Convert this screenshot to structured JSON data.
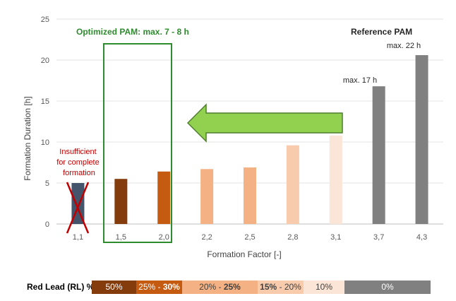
{
  "chart_data": {
    "type": "bar",
    "categories": [
      "1,1",
      "1,5",
      "2,0",
      "2,2",
      "2,5",
      "2,8",
      "3,1",
      "3,7",
      "4,3"
    ],
    "values": [
      5.0,
      5.5,
      6.4,
      6.7,
      6.9,
      9.6,
      10.8,
      16.8,
      20.6
    ],
    "colors": [
      "#44546a",
      "#843c0c",
      "#c55a11",
      "#f4b183",
      "#f4b183",
      "#f8cbad",
      "#fbe5d6",
      "#808080",
      "#808080"
    ],
    "xlabel": "Formation Factor [-]",
    "ylabel": "Formation Duration [h]",
    "ylim": [
      0,
      25
    ],
    "yticks": [
      0,
      5,
      10,
      15,
      20,
      25
    ],
    "grid": true,
    "annotations": {
      "optimized": "Optimized PAM: max. 7 - 8 h",
      "reference": "Reference PAM",
      "max17": "max. 17 h",
      "max22": "max. 22 h",
      "insufficient": [
        "Insufficient",
        "for complete",
        "formation"
      ]
    }
  },
  "legend": {
    "label": "Red Lead (RL) %",
    "segments": [
      {
        "parts": [
          {
            "text": "50%",
            "bold": false
          }
        ],
        "color": "#843c0c",
        "text_color": "#ffffff"
      },
      {
        "parts": [
          {
            "text": "25% - ",
            "bold": false
          },
          {
            "text": "30%",
            "bold": true
          }
        ],
        "color": "#c55a11",
        "text_color": "#ffffff"
      },
      {
        "parts": [
          {
            "text": "20% - ",
            "bold": false
          },
          {
            "text": "25%",
            "bold": true
          }
        ],
        "color": "#f4b183",
        "text_color": "#404040"
      },
      {
        "parts": [
          {
            "text": "15%",
            "bold": true
          },
          {
            "text": " - 20%",
            "bold": false
          }
        ],
        "color": "#f8cbad",
        "text_color": "#404040"
      },
      {
        "parts": [
          {
            "text": "10%",
            "bold": false
          }
        ],
        "color": "#fbe5d6",
        "text_color": "#404040"
      },
      {
        "parts": [
          {
            "text": "0%",
            "bold": false
          }
        ],
        "color": "#808080",
        "text_color": "#ffffff"
      }
    ]
  }
}
